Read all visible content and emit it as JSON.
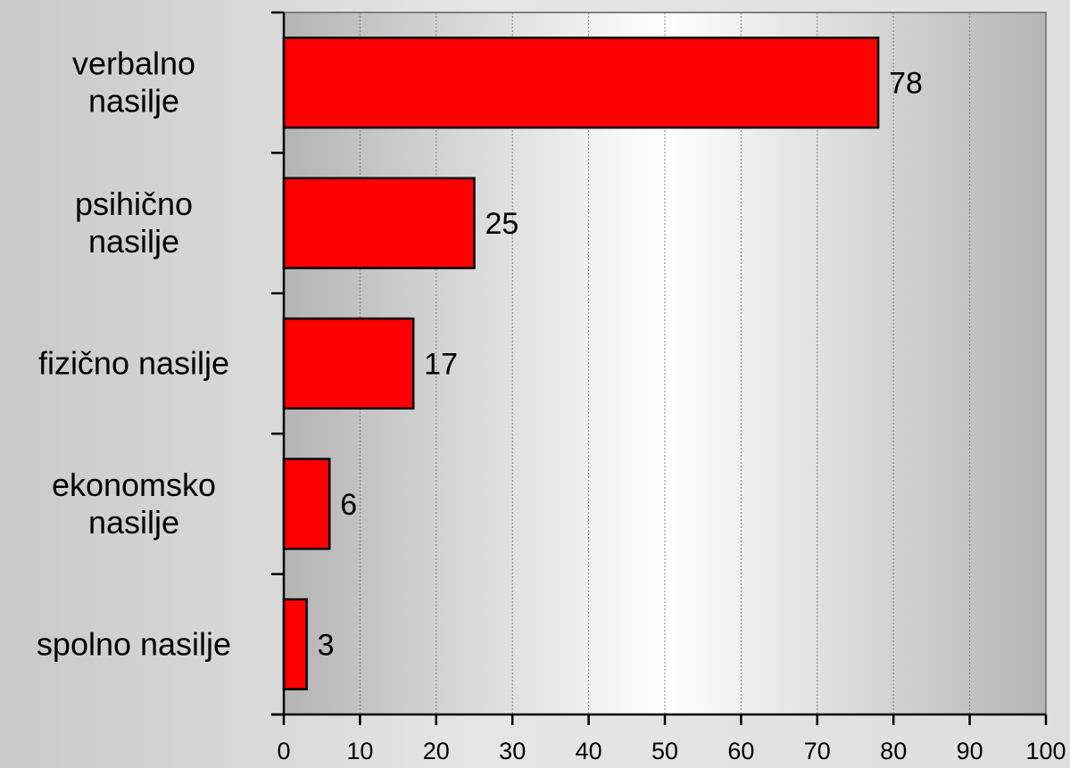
{
  "chart_data": {
    "type": "bar",
    "orientation": "horizontal",
    "categories": [
      [
        "verbalno",
        "nasilje"
      ],
      [
        "psihično",
        "nasilje"
      ],
      [
        "fizično nasilje"
      ],
      [
        "ekonomsko",
        "nasilje"
      ],
      [
        "spolno nasilje"
      ]
    ],
    "values": [
      78,
      25,
      17,
      6,
      3
    ],
    "xlim": [
      0,
      100
    ],
    "xticks": [
      0,
      10,
      20,
      30,
      40,
      50,
      60,
      70,
      80,
      90,
      100
    ],
    "grid": true,
    "data_labels": true,
    "colors": {
      "bar": "#ff0000",
      "bar_outline": "#000000"
    }
  }
}
